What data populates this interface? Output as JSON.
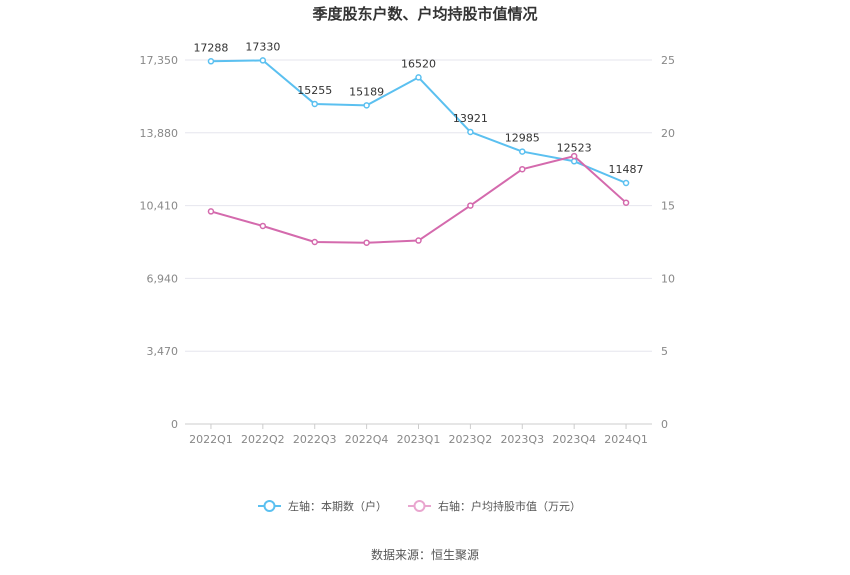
{
  "chart_data": {
    "type": "line",
    "title": "季度股东户数、户均持股市值情况",
    "categories": [
      "2022Q1",
      "2022Q2",
      "2022Q3",
      "2022Q4",
      "2023Q1",
      "2023Q2",
      "2023Q3",
      "2023Q4",
      "2024Q1"
    ],
    "series": [
      {
        "name": "左轴：本期数（户）",
        "axis": "left",
        "color": "#5bc0f0",
        "values": [
          17288,
          17330,
          15255,
          15189,
          16520,
          13921,
          12985,
          12523,
          11487
        ],
        "data_labels": [
          "17288",
          "17330",
          "15255",
          "15189",
          "16520",
          "13921",
          "12985",
          "12523",
          "11487"
        ]
      },
      {
        "name": "右轴：户均持股市值（万元）",
        "axis": "right",
        "color": "#d46aad",
        "values": [
          14.6,
          13.6,
          12.5,
          12.45,
          12.6,
          15.0,
          17.5,
          18.4,
          15.2
        ]
      }
    ],
    "y_left": {
      "ylim": [
        0,
        17350
      ],
      "ticks": [
        "0",
        "3,470",
        "6,940",
        "10,410",
        "13,880",
        "17,350"
      ]
    },
    "y_right": {
      "ylim": [
        0,
        25
      ],
      "ticks": [
        "0",
        "5",
        "10",
        "15",
        "20",
        "25"
      ]
    },
    "grid": true,
    "legend_position": "bottom"
  },
  "source": "数据来源：恒生聚源"
}
